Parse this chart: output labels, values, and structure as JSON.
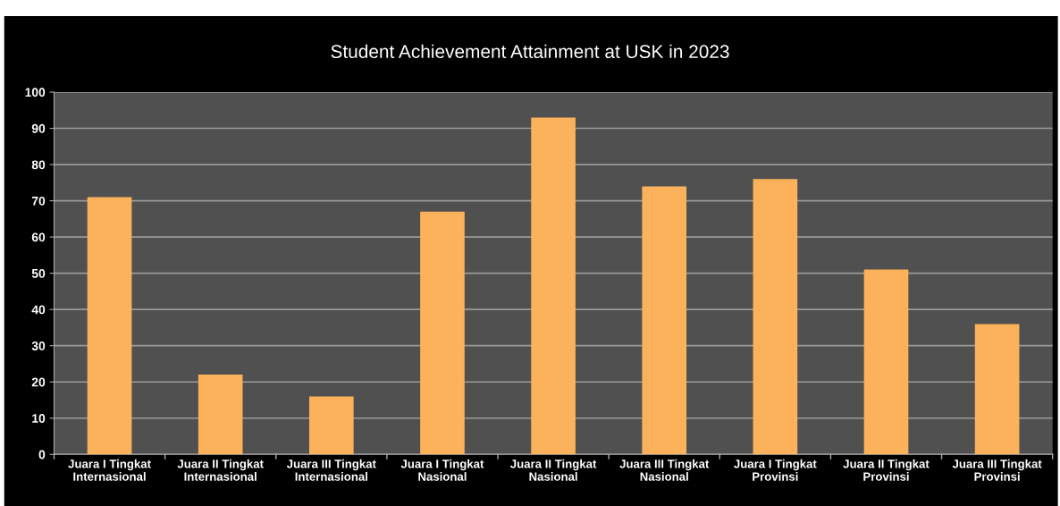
{
  "chart_data": {
    "type": "bar",
    "title": "Student Achievement Attainment at USK in 2023",
    "categories": [
      "Juara I Tingkat\nInternasional",
      "Juara II Tingkat\nInternasional",
      "Juara III Tingkat\nInternasional",
      "Juara I Tingkat\nNasional",
      "Juara II Tingkat\nNasional",
      "Juara III Tingkat\nNasional",
      "Juara I Tingkat\nProvinsi",
      "Juara II Tingkat\nProvinsi",
      "Juara III Tingkat\nProvinsi"
    ],
    "values": [
      71,
      22,
      16,
      67,
      93,
      74,
      76,
      51,
      36
    ],
    "color": "#fbb25a",
    "ylim": [
      0,
      100
    ],
    "yticks": [
      0,
      10,
      20,
      30,
      40,
      50,
      60,
      70,
      80,
      90,
      100
    ],
    "grid": "y"
  }
}
